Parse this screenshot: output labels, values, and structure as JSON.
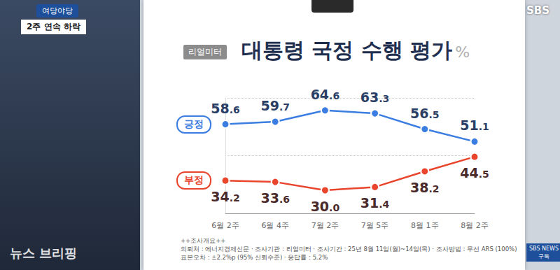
{
  "chart_data": {
    "type": "line",
    "title": "대통령 국정 수행 평가",
    "subtitle": "리얼미터",
    "annotations": {
      "unit": "%",
      "badge": "여당야당",
      "headline": "2주 연속 하락",
      "caption": "뉴스 브리핑",
      "footnote": [
        "++조사개요++",
        "의뢰처 : 에너지경제신문 · 조사기관 : 리얼미터 · 조사기간 : 25년 8월 11일(월)~14일(목) · 조사방법 : 무선 ARS (100%)",
        "표본오차 : ±2.2%p (95% 신뢰수준) · 응답률 : 5.2%"
      ],
      "logo": "SBS",
      "corner": [
        "SBS NEWS",
        "구독"
      ]
    },
    "categories": [
      "6월 2주",
      "6월 4주",
      "7월 2주",
      "7월 5주",
      "8월 1주",
      "8월 2주"
    ],
    "series": [
      {
        "name": "긍정",
        "color": "#3b7de0",
        "marker": "circle",
        "values": [
          58.6,
          59.7,
          64.6,
          63.3,
          56.5,
          51.1
        ],
        "value_labels": [
          "58.6",
          "59.7",
          "64.6",
          "63.3",
          "56.5",
          "51.1"
        ]
      },
      {
        "name": "부정",
        "color": "#e8452c",
        "marker": "circle",
        "values": [
          34.2,
          33.6,
          30.0,
          31.4,
          38.2,
          44.5
        ],
        "value_labels": [
          "34.2",
          "33.6",
          "30.0",
          "31.4",
          "38.2",
          "44.5"
        ]
      }
    ],
    "ylim": [
      20,
      70
    ],
    "yticks": [
      20,
      45,
      70
    ],
    "grid": true,
    "data_labels": true,
    "tick_labels": "x"
  }
}
